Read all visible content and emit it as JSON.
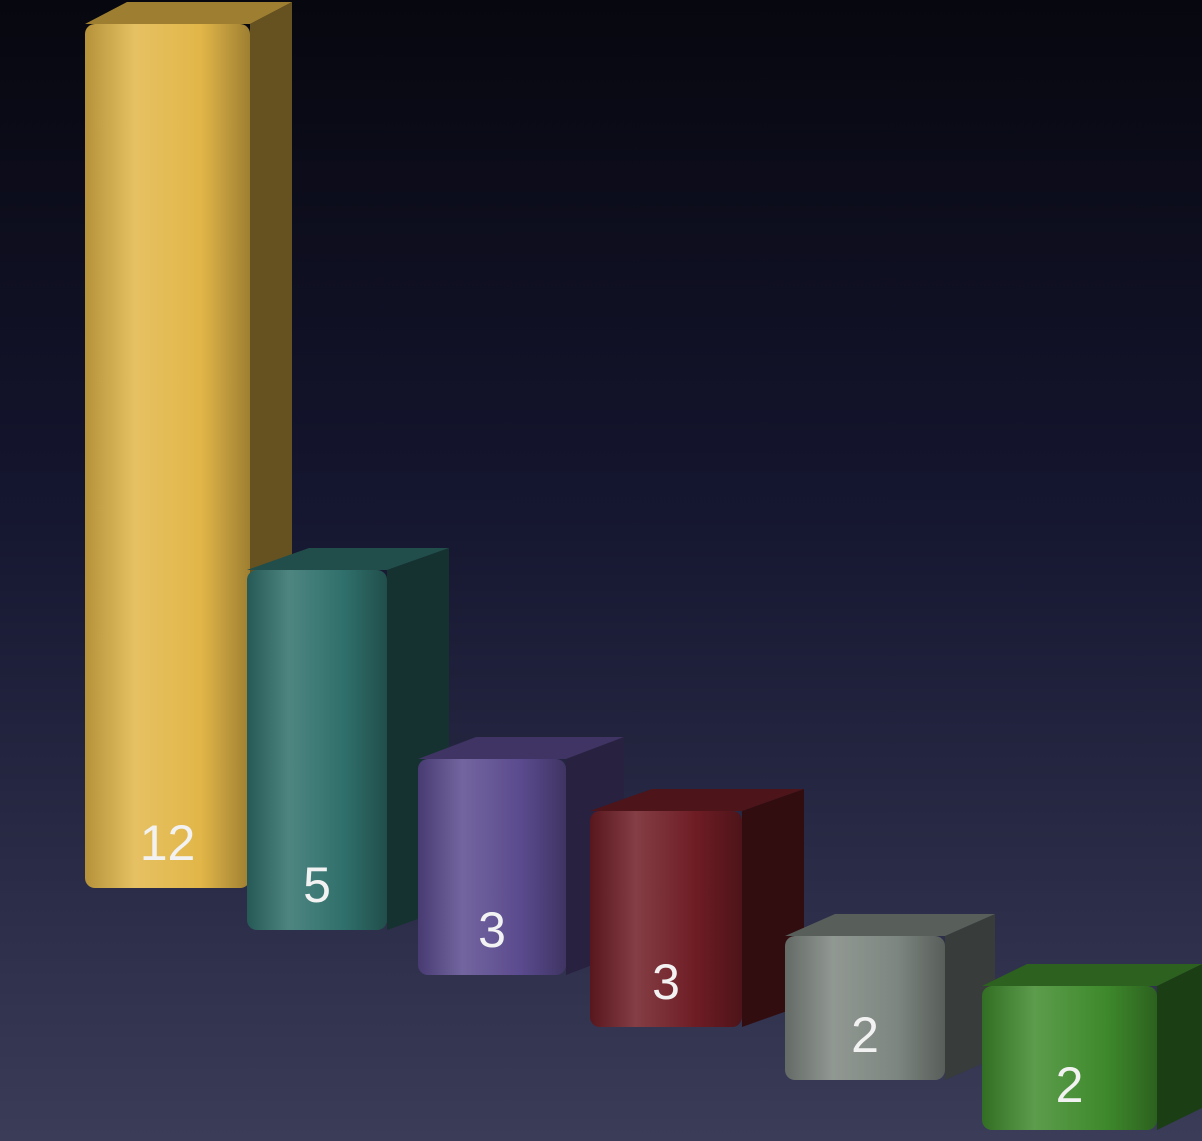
{
  "chart_data": {
    "type": "bar",
    "style": "3d",
    "title": "",
    "xlabel": "",
    "ylabel": "",
    "ylim": [
      0,
      12
    ],
    "grid": false,
    "values": [
      12,
      5,
      3,
      3,
      2,
      2
    ],
    "labels": [
      "12",
      "5",
      "3",
      "3",
      "2",
      "2"
    ],
    "colors": [
      "#e2b648",
      "#2f6f6b",
      "#5a4a8e",
      "#6e1c24",
      "#7d8680",
      "#3f8a2c"
    ]
  }
}
